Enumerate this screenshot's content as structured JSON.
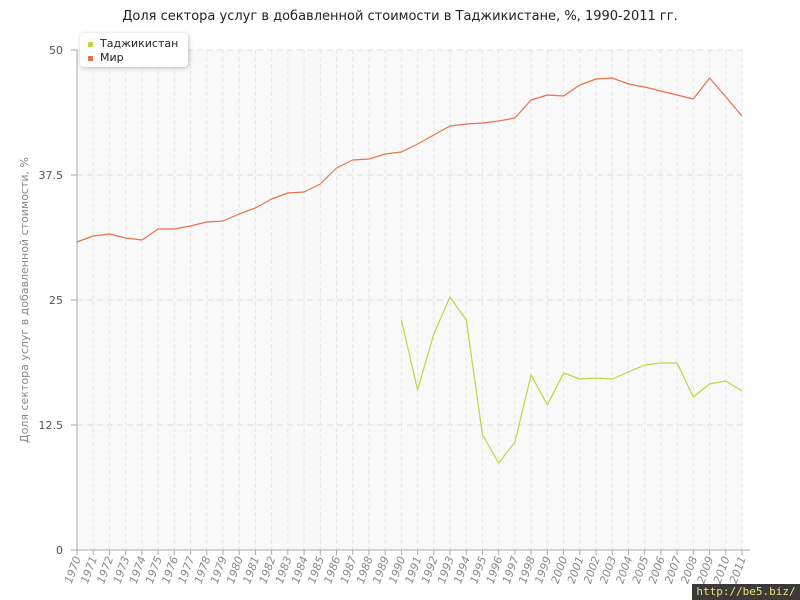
{
  "chart_data": {
    "type": "line",
    "title": "Доля сектора услуг в добавленной стоимости в Таджикистане, %, 1990-2011 гг.",
    "ylabel": "Доля сектора услуг в добавленной стоимости, %",
    "xlabel": "",
    "ylim": [
      0,
      50
    ],
    "yticks": [
      "0",
      "12.5",
      "25",
      "37.5",
      "50"
    ],
    "x": [
      "1970",
      "1971",
      "1972",
      "1973",
      "1974",
      "1975",
      "1976",
      "1977",
      "1978",
      "1979",
      "1980",
      "1981",
      "1982",
      "1983",
      "1984",
      "1985",
      "1986",
      "1987",
      "1988",
      "1989",
      "1990",
      "1991",
      "1992",
      "1993",
      "1994",
      "1995",
      "1996",
      "1997",
      "1998",
      "1999",
      "2000",
      "2001",
      "2002",
      "2003",
      "2004",
      "2005",
      "2006",
      "2007",
      "2008",
      "2009",
      "2010",
      "2011"
    ],
    "grid": true,
    "legend_position": "top-left",
    "series": [
      {
        "name": "Таджикистан",
        "color": "#b9d93f",
        "values": [
          null,
          null,
          null,
          null,
          null,
          null,
          null,
          null,
          null,
          null,
          null,
          null,
          null,
          null,
          null,
          null,
          null,
          null,
          null,
          null,
          23.0,
          16.0,
          21.6,
          25.3,
          23.0,
          11.5,
          8.7,
          10.8,
          17.5,
          14.5,
          17.7,
          17.1,
          17.2,
          17.1,
          17.8,
          18.5,
          18.7,
          18.7,
          15.3,
          16.6,
          16.9,
          15.9
        ]
      },
      {
        "name": "Мир",
        "color": "#e8734a",
        "values": [
          30.8,
          31.4,
          31.6,
          31.2,
          31.0,
          32.1,
          32.1,
          32.4,
          32.8,
          32.9,
          33.6,
          34.2,
          35.1,
          35.7,
          35.8,
          36.6,
          38.2,
          39.0,
          39.1,
          39.6,
          39.8,
          40.6,
          41.5,
          42.4,
          42.6,
          42.7,
          42.9,
          43.2,
          45.0,
          45.5,
          45.4,
          46.5,
          47.1,
          47.2,
          46.6,
          46.3,
          45.9,
          45.5,
          45.1,
          47.2,
          45.3,
          43.4
        ]
      }
    ]
  },
  "watermark": "http://be5.biz/"
}
